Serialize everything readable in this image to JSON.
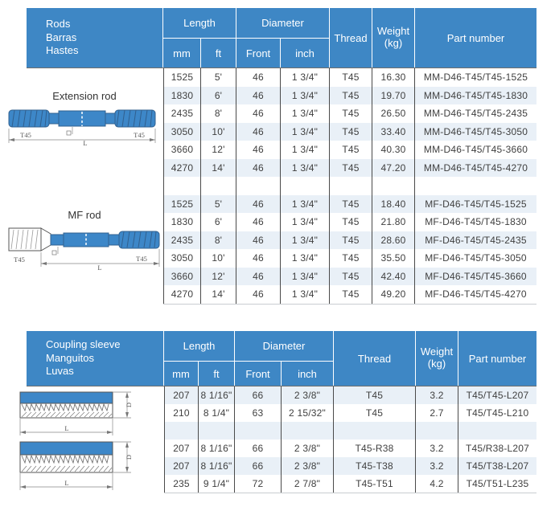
{
  "colors": {
    "header_blue": "#3e87c5",
    "band_blue": "#e9f0f7",
    "grid_line_dark": "#4a4a4a",
    "grid_line_light": "#c9cdd1",
    "text_dark": "#3f3f3f",
    "header_text": "#ffffff",
    "diagram_blue": "#3d87c8"
  },
  "rod_table": {
    "title_lines": [
      "Rods",
      "Barras",
      "Hastes"
    ],
    "headers": {
      "length": "Length",
      "mm": "mm",
      "ft": "ft",
      "diameter": "Diameter",
      "front": "Front",
      "inch": "inch",
      "thread": "Thread",
      "weight_line1": "Weight",
      "weight_line2": "(kg)",
      "part": "Part number"
    },
    "diagrams": [
      {
        "title": "Extension rod",
        "labels": {
          "left": "T45",
          "right": "T45",
          "dim": "L"
        }
      },
      {
        "title": "MF rod",
        "labels": {
          "left": "T45",
          "right": "T45",
          "dim": "L"
        }
      }
    ],
    "rows": [
      [
        "1525",
        "5'",
        "46",
        "1 3/4\"",
        "T45",
        "16.30",
        "MM-D46-T45/T45-1525"
      ],
      [
        "1830",
        "6'",
        "46",
        "1 3/4\"",
        "T45",
        "19.70",
        "MM-D46-T45/T45-1830"
      ],
      [
        "2435",
        "8'",
        "46",
        "1 3/4\"",
        "T45",
        "26.50",
        "MM-D46-T45/T45-2435"
      ],
      [
        "3050",
        "10'",
        "46",
        "1 3/4\"",
        "T45",
        "33.40",
        "MM-D46-T45/T45-3050"
      ],
      [
        "3660",
        "12'",
        "46",
        "1 3/4\"",
        "T45",
        "40.30",
        "MM-D46-T45/T45-3660"
      ],
      [
        "4270",
        "14'",
        "46",
        "1 3/4\"",
        "T45",
        "47.20",
        "MM-D46-T45/T45-4270"
      ],
      [],
      [
        "1525",
        "5'",
        "46",
        "1 3/4\"",
        "T45",
        "18.40",
        "MF-D46-T45/T45-1525"
      ],
      [
        "1830",
        "6'",
        "46",
        "1 3/4\"",
        "T45",
        "21.80",
        "MF-D46-T45/T45-1830"
      ],
      [
        "2435",
        "8'",
        "46",
        "1 3/4\"",
        "T45",
        "28.60",
        "MF-D46-T45/T45-2435"
      ],
      [
        "3050",
        "10'",
        "46",
        "1 3/4\"",
        "T45",
        "35.50",
        "MF-D46-T45/T45-3050"
      ],
      [
        "3660",
        "12'",
        "46",
        "1 3/4\"",
        "T45",
        "42.40",
        "MF-D46-T45/T45-3660"
      ],
      [
        "4270",
        "14'",
        "46",
        "1 3/4\"",
        "T45",
        "49.20",
        "MF-D46-T45/T45-4270"
      ]
    ]
  },
  "sleeve_table": {
    "title_lines": [
      "Coupling sleeve",
      "Manguitos",
      "Luvas"
    ],
    "headers": {
      "length": "Length",
      "mm": "mm",
      "ft": "ft",
      "diameter": "Diameter",
      "front": "Front",
      "inch": "inch",
      "thread": "Thread",
      "weight_line1": "Weight",
      "weight_line2": "(kg)",
      "part": "Part number"
    },
    "diagrams": [
      {
        "labels": {
          "d": "D",
          "l": "L"
        }
      },
      {
        "labels": {
          "d": "D",
          "l": "L"
        }
      }
    ],
    "rows": [
      [
        "207",
        "8 1/16\"",
        "66",
        "2 3/8\"",
        "T45",
        "3.2",
        "T45/T45-L207"
      ],
      [
        "210",
        "8 1/4\"",
        "63",
        "2 15/32\"",
        "T45",
        "2.7",
        "T45/T45-L210"
      ],
      [],
      [
        "207",
        "8 1/16\"",
        "66",
        "2 3/8\"",
        "T45-R38",
        "3.2",
        "T45/R38-L207"
      ],
      [
        "207",
        "8 1/16\"",
        "66",
        "2 3/8\"",
        "T45-T38",
        "3.2",
        "T45/T38-L207"
      ],
      [
        "235",
        "9 1/4\"",
        "72",
        "2 7/8\"",
        "T45-T51",
        "4.2",
        "T45/T51-L235"
      ]
    ]
  }
}
